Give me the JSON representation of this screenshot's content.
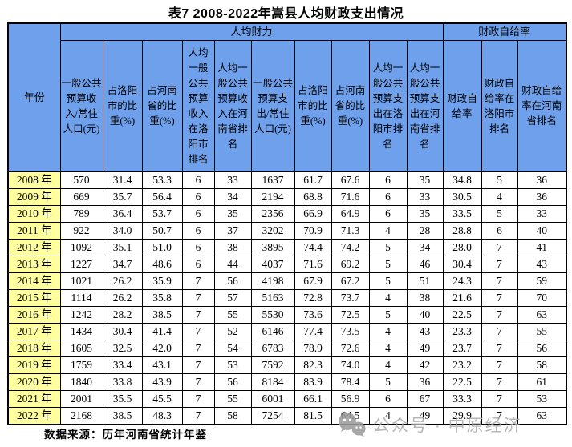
{
  "title": "表7 2008-2022年嵩县人均财政支出情况",
  "table": {
    "group_headers": {
      "year": "年份",
      "per_capita_fiscal": "人均财力",
      "fiscal_self_sufficiency": "财政自给率"
    },
    "columns": [
      "一般公共预算收入/常住人口(元)",
      "占洛阳市的比重(%)",
      "占河南省的比重(%)",
      "人均一般公共预算收入在洛阳市排名",
      "人均一般公共预算收入在河南省排名",
      "一般公共预算支出/常住人口(元)",
      "占洛阳市的比重(%)",
      "占河南省的比重(%)",
      "人均一般公共预算支出在洛阳市排名",
      "人均一般公共预算支出在河南省排名",
      "财政自给率",
      "财政自给率在洛阳市排名",
      "财政自给率在河南省排名"
    ],
    "rows": [
      {
        "year": "2008 年",
        "values": [
          "570",
          "31.4",
          "53.3",
          "6",
          "33",
          "1637",
          "61.7",
          "67.6",
          "6",
          "35",
          "34.8",
          "5",
          "36"
        ]
      },
      {
        "year": "2009 年",
        "values": [
          "669",
          "35.7",
          "56.4",
          "6",
          "34",
          "2194",
          "68.8",
          "71.6",
          "6",
          "33",
          "30.5",
          "4",
          "36"
        ]
      },
      {
        "year": "2010 年",
        "values": [
          "789",
          "36.4",
          "53.7",
          "6",
          "35",
          "2356",
          "66.9",
          "64.9",
          "6",
          "35",
          "33.5",
          "5",
          "33"
        ]
      },
      {
        "year": "2011 年",
        "values": [
          "922",
          "34.0",
          "50.7",
          "6",
          "37",
          "3202",
          "70.9",
          "71.3",
          "4",
          "28",
          "28.8",
          "6",
          "40"
        ]
      },
      {
        "year": "2012 年",
        "values": [
          "1092",
          "35.1",
          "51.0",
          "6",
          "38",
          "3895",
          "74.4",
          "74.2",
          "5",
          "34",
          "28.0",
          "7",
          "41"
        ]
      },
      {
        "year": "2013 年",
        "values": [
          "1227",
          "34.7",
          "48.6",
          "6",
          "44",
          "4037",
          "71.6",
          "69.2",
          "5",
          "46",
          "30.4",
          "7",
          "43"
        ]
      },
      {
        "year": "2014 年",
        "values": [
          "1021",
          "26.2",
          "35.9",
          "7",
          "56",
          "4198",
          "67.9",
          "67.2",
          "5",
          "51",
          "24.3",
          "7",
          "59"
        ]
      },
      {
        "year": "2015 年",
        "values": [
          "1114",
          "26.2",
          "35.8",
          "7",
          "57",
          "5163",
          "72.8",
          "73.7",
          "4",
          "38",
          "21.6",
          "7",
          "70"
        ]
      },
      {
        "year": "2016 年",
        "values": [
          "1242",
          "28.2",
          "38.5",
          "7",
          "55",
          "5530",
          "73.6",
          "72.5",
          "5",
          "40",
          "22.5",
          "7",
          "63"
        ]
      },
      {
        "year": "2017 年",
        "values": [
          "1434",
          "30.4",
          "41.4",
          "7",
          "52",
          "6146",
          "77.4",
          "73.5",
          "4",
          "43",
          "23.3",
          "7",
          "55"
        ]
      },
      {
        "year": "2018 年",
        "values": [
          "1605",
          "32.5",
          "42.0",
          "7",
          "54",
          "6783",
          "78.9",
          "72.6",
          "4",
          "49",
          "23.7",
          "7",
          "56"
        ]
      },
      {
        "year": "2019 年",
        "values": [
          "1759",
          "33.4",
          "43.1",
          "7",
          "53",
          "7592",
          "82.3",
          "74.0",
          "4",
          "42",
          "23.2",
          "7",
          "58"
        ]
      },
      {
        "year": "2020 年",
        "values": [
          "1840",
          "33.8",
          "43.9",
          "7",
          "56",
          "8184",
          "83.9",
          "78.4",
          "5",
          "36",
          "22.5",
          "7",
          "61"
        ]
      },
      {
        "year": "2021 年",
        "values": [
          "2001",
          "35.5",
          "45.5",
          "7",
          "55",
          "6001",
          "66.1",
          "56.9",
          "6",
          "67",
          "33.3",
          "7",
          "53"
        ]
      },
      {
        "year": "2022 年",
        "values": [
          "2168",
          "38.5",
          "48.3",
          "7",
          "58",
          "7254",
          "81.5",
          "64.5",
          "4",
          "49",
          "29.9",
          "7",
          "63"
        ]
      }
    ]
  },
  "footer": {
    "source": "数据来源：历年河南省统计年鉴"
  },
  "watermark": {
    "icon": "wechat-icon",
    "text": "公众号 · 中原经济"
  },
  "colors": {
    "header_bg": "#6FA0EC",
    "year_bg": "#FFFF9E",
    "border": "#000000",
    "watermark_gray": "#ABABAB"
  }
}
